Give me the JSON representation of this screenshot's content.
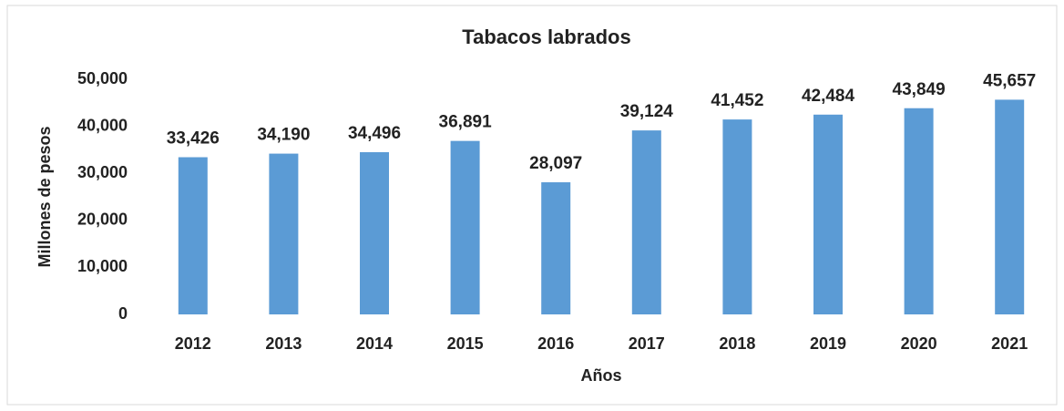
{
  "chart_data": {
    "type": "bar",
    "title": "Tabacos labrados",
    "x_label": "Años",
    "y_label": "Millones de pesos",
    "categories": [
      "2012",
      "2013",
      "2014",
      "2015",
      "2016",
      "2017",
      "2018",
      "2019",
      "2020",
      "2021"
    ],
    "values": [
      33426,
      34190,
      34496,
      36891,
      28097,
      39124,
      41452,
      42484,
      43849,
      45657
    ],
    "value_labels": [
      "33,426",
      "34,190",
      "34,496",
      "36,891",
      "28,097",
      "39,124",
      "41,452",
      "42,484",
      "43,849",
      "45,657"
    ],
    "color": "#5b9bd5",
    "ylim": [
      0,
      50000
    ],
    "yticks": [
      0,
      {
        "value": 10000,
        "label": "10,000"
      },
      {
        "value": 20000,
        "label": "20,000"
      },
      {
        "value": 30000,
        "label": "30,000"
      },
      {
        "value": 40000,
        "label": "40,000"
      },
      {
        "value": 50000,
        "label": "50,000"
      }
    ],
    "grid": false
  }
}
